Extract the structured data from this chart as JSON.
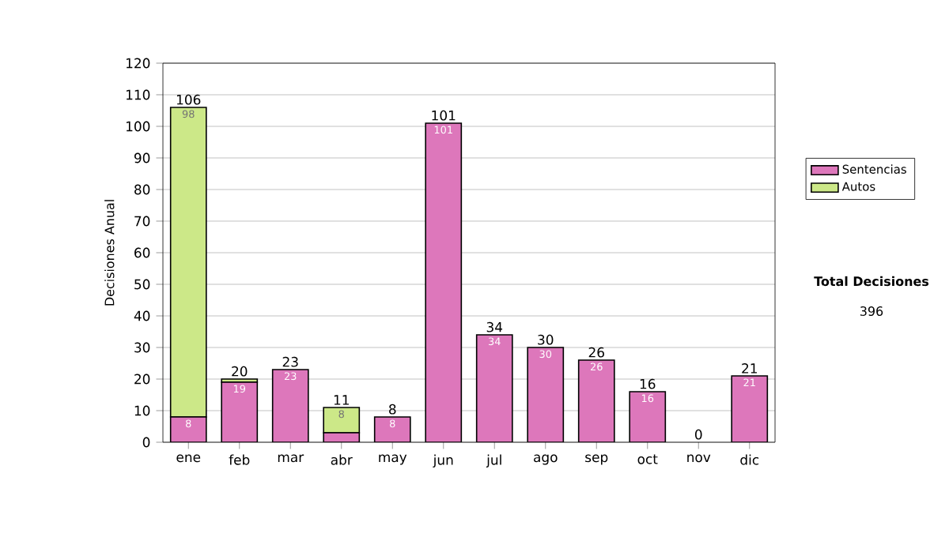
{
  "chart_data": {
    "type": "bar",
    "stacked": true,
    "ylabel": "Decisiones Anual",
    "categories": [
      "ene",
      "feb",
      "mar",
      "abr",
      "may",
      "jun",
      "jul",
      "ago",
      "sep",
      "oct",
      "nov",
      "dic"
    ],
    "series": [
      {
        "name": "Sentencias",
        "color": "#dd77bb",
        "values": [
          8,
          19,
          23,
          3,
          8,
          101,
          34,
          30,
          26,
          16,
          0,
          21
        ],
        "value_labels": [
          "8",
          "19",
          "23",
          null,
          "8",
          "101",
          "34",
          "30",
          "26",
          "16",
          null,
          "21"
        ]
      },
      {
        "name": "Autos",
        "color": "#cce888",
        "values": [
          98,
          1,
          0,
          8,
          0,
          0,
          0,
          0,
          0,
          0,
          0,
          0
        ],
        "value_labels": [
          "98",
          null,
          null,
          "8",
          null,
          null,
          null,
          null,
          null,
          null,
          null,
          null
        ]
      }
    ],
    "totals": [
      "106",
      "20",
      "23",
      "11",
      "8",
      "101",
      "34",
      "30",
      "26",
      "16",
      "0",
      "21"
    ],
    "ylim": [
      0,
      120
    ],
    "yticks": [
      0,
      10,
      20,
      30,
      40,
      50,
      60,
      70,
      80,
      90,
      100,
      110,
      120
    ],
    "grid": "y",
    "legend": "right",
    "annotations": [
      "Total Decisiones",
      "396"
    ]
  }
}
